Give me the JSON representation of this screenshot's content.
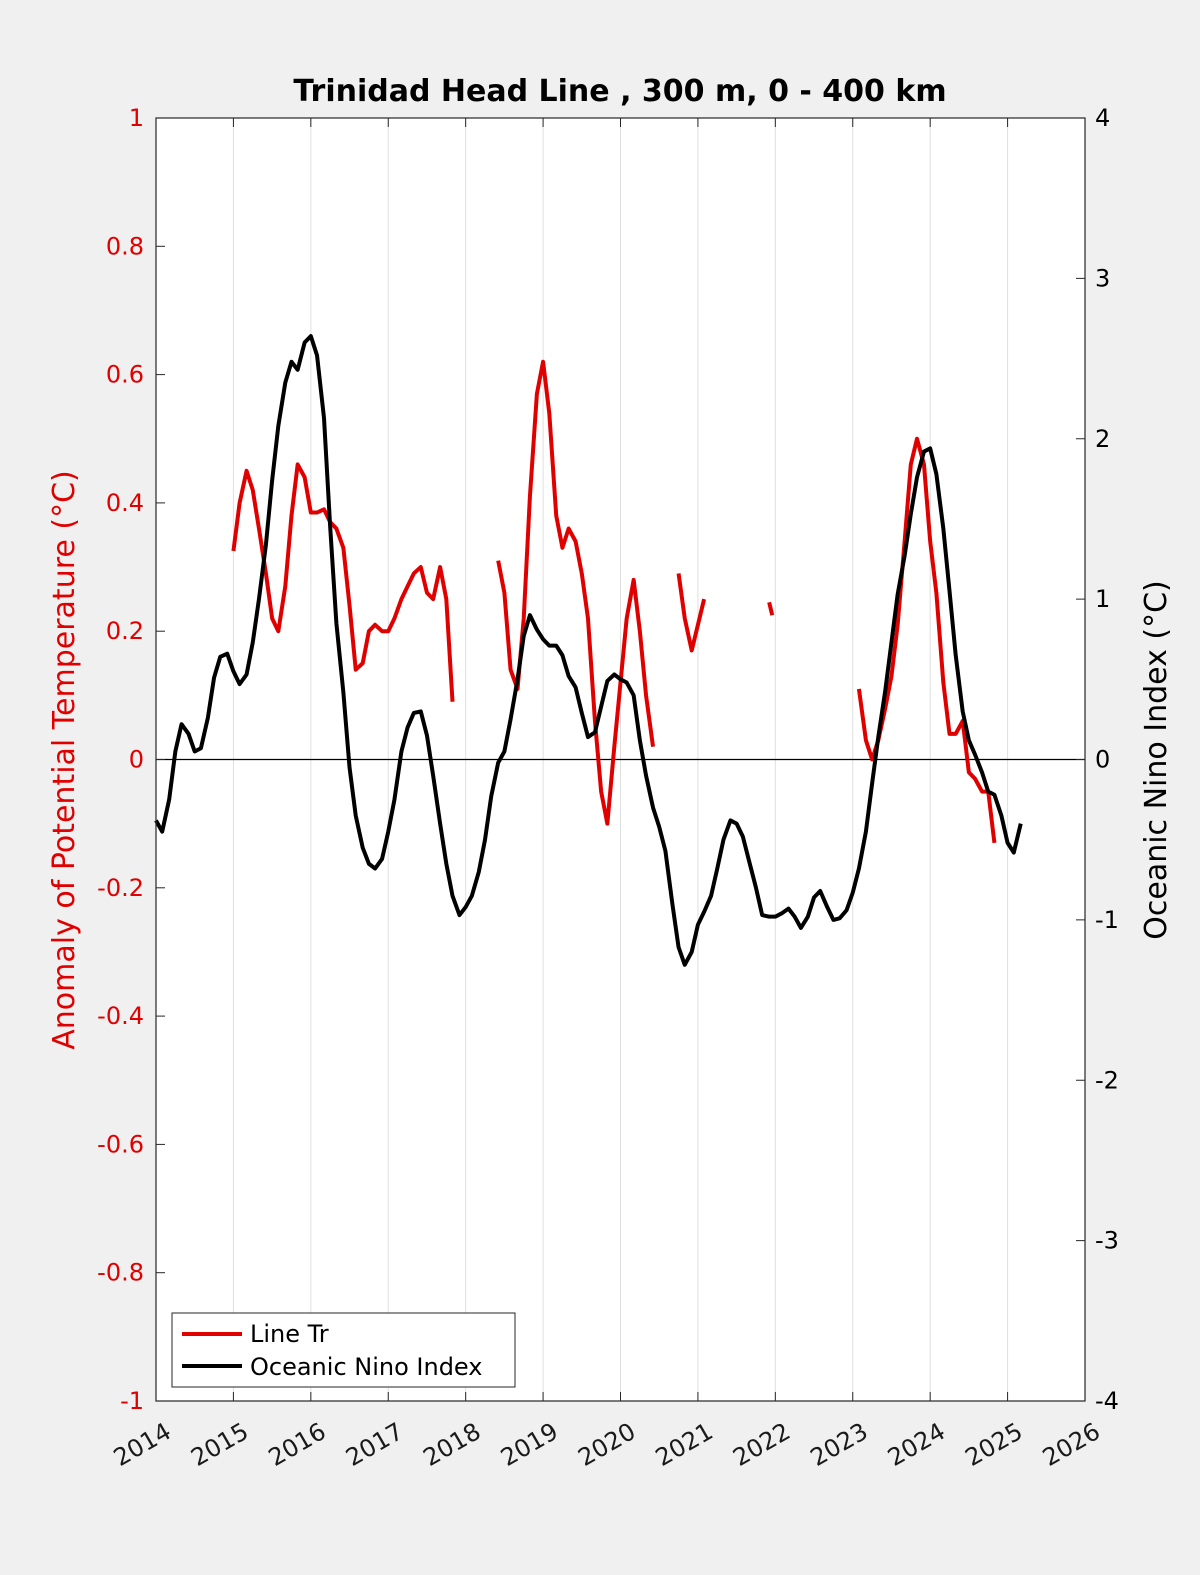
{
  "chart_data": {
    "type": "line",
    "title": "Trinidad Head Line , 300 m, 0 - 400 km",
    "ylabel_left": "Anomaly of Potential Temperature (°C)",
    "ylabel_right": "Oceanic Nino Index (°C)",
    "xlim": [
      2014,
      2026
    ],
    "ylim_left": [
      -1,
      1
    ],
    "ylim_right": [
      -4,
      4
    ],
    "x_ticks": [
      2014,
      2015,
      2016,
      2017,
      2018,
      2019,
      2020,
      2021,
      2022,
      2023,
      2024,
      2025,
      2026
    ],
    "y_ticks_left": [
      "1",
      "0.8",
      "0.6",
      "0.4",
      "0.2",
      "0",
      "-0.2",
      "-0.4",
      "-0.6",
      "-0.8",
      "-1"
    ],
    "y_ticks_right": [
      "4",
      "3",
      "2",
      "1",
      "0",
      "-1",
      "-2",
      "-3",
      "-4"
    ],
    "grid": "vertical",
    "legend_position": "bottom-left",
    "colors": {
      "line_tr": "#e00000",
      "oni": "#000000",
      "left_axis": "#e00000"
    },
    "series": [
      {
        "name": "Line Tr",
        "axis": "left",
        "segments": [
          [
            [
              2015.0,
              0.325
            ],
            [
              2015.08,
              0.4
            ],
            [
              2015.17,
              0.45
            ],
            [
              2015.25,
              0.42
            ],
            [
              2015.33,
              0.36
            ],
            [
              2015.42,
              0.29
            ],
            [
              2015.5,
              0.22
            ],
            [
              2015.58,
              0.2
            ],
            [
              2015.67,
              0.27
            ],
            [
              2015.75,
              0.38
            ],
            [
              2015.83,
              0.46
            ],
            [
              2015.92,
              0.44
            ],
            [
              2016.0,
              0.385
            ],
            [
              2016.08,
              0.385
            ],
            [
              2016.17,
              0.39
            ],
            [
              2016.25,
              0.37
            ],
            [
              2016.33,
              0.36
            ],
            [
              2016.42,
              0.33
            ],
            [
              2016.5,
              0.24
            ],
            [
              2016.58,
              0.14
            ],
            [
              2016.67,
              0.15
            ],
            [
              2016.75,
              0.2
            ],
            [
              2016.83,
              0.21
            ],
            [
              2016.92,
              0.2
            ],
            [
              2017.0,
              0.2
            ],
            [
              2017.08,
              0.22
            ],
            [
              2017.17,
              0.25
            ],
            [
              2017.25,
              0.27
            ],
            [
              2017.33,
              0.29
            ],
            [
              2017.42,
              0.3
            ],
            [
              2017.5,
              0.26
            ],
            [
              2017.58,
              0.25
            ],
            [
              2017.67,
              0.3
            ],
            [
              2017.75,
              0.25
            ],
            [
              2017.83,
              0.09
            ]
          ],
          [
            [
              2018.42,
              0.31
            ],
            [
              2018.5,
              0.26
            ],
            [
              2018.58,
              0.14
            ],
            [
              2018.67,
              0.11
            ],
            [
              2018.75,
              0.22
            ],
            [
              2018.83,
              0.41
            ],
            [
              2018.92,
              0.57
            ],
            [
              2019.0,
              0.62
            ],
            [
              2019.08,
              0.54
            ],
            [
              2019.17,
              0.38
            ],
            [
              2019.25,
              0.33
            ],
            [
              2019.33,
              0.36
            ],
            [
              2019.42,
              0.34
            ],
            [
              2019.5,
              0.29
            ],
            [
              2019.58,
              0.22
            ],
            [
              2019.67,
              0.06
            ],
            [
              2019.75,
              -0.05
            ],
            [
              2019.83,
              -0.1
            ],
            [
              2019.92,
              0.02
            ],
            [
              2020.0,
              0.12
            ],
            [
              2020.08,
              0.22
            ],
            [
              2020.17,
              0.28
            ],
            [
              2020.25,
              0.2
            ],
            [
              2020.33,
              0.1
            ],
            [
              2020.42,
              0.02
            ]
          ],
          [
            [
              2020.75,
              0.29
            ],
            [
              2020.83,
              0.22
            ],
            [
              2020.92,
              0.17
            ],
            [
              2021.0,
              0.21
            ],
            [
              2021.08,
              0.25
            ]
          ],
          [
            [
              2021.92,
              0.245
            ],
            [
              2021.96,
              0.225
            ]
          ],
          [
            [
              2023.08,
              0.11
            ],
            [
              2023.17,
              0.03
            ],
            [
              2023.25,
              0.0
            ],
            [
              2023.33,
              0.03
            ],
            [
              2023.42,
              0.08
            ],
            [
              2023.5,
              0.13
            ],
            [
              2023.58,
              0.21
            ],
            [
              2023.67,
              0.34
            ],
            [
              2023.75,
              0.46
            ],
            [
              2023.83,
              0.5
            ],
            [
              2023.92,
              0.46
            ],
            [
              2024.0,
              0.34
            ],
            [
              2024.08,
              0.26
            ],
            [
              2024.17,
              0.12
            ],
            [
              2024.25,
              0.04
            ],
            [
              2024.33,
              0.04
            ],
            [
              2024.42,
              0.06
            ],
            [
              2024.5,
              -0.02
            ],
            [
              2024.58,
              -0.03
            ],
            [
              2024.67,
              -0.05
            ],
            [
              2024.75,
              -0.05
            ],
            [
              2024.83,
              -0.13
            ]
          ]
        ]
      },
      {
        "name": "Oceanic Nino Index",
        "axis": "right",
        "segments": [
          [
            [
              2014.0,
              -0.38
            ],
            [
              2014.08,
              -0.45
            ],
            [
              2014.17,
              -0.25
            ],
            [
              2014.25,
              0.05
            ],
            [
              2014.33,
              0.22
            ],
            [
              2014.42,
              0.16
            ],
            [
              2014.5,
              0.05
            ],
            [
              2014.58,
              0.07
            ],
            [
              2014.67,
              0.26
            ],
            [
              2014.75,
              0.51
            ],
            [
              2014.83,
              0.64
            ],
            [
              2014.92,
              0.66
            ],
            [
              2015.0,
              0.55
            ],
            [
              2015.08,
              0.47
            ],
            [
              2015.17,
              0.53
            ],
            [
              2015.25,
              0.73
            ],
            [
              2015.33,
              1.0
            ],
            [
              2015.42,
              1.34
            ],
            [
              2015.5,
              1.74
            ],
            [
              2015.58,
              2.08
            ],
            [
              2015.67,
              2.35
            ],
            [
              2015.75,
              2.48
            ],
            [
              2015.83,
              2.43
            ],
            [
              2015.92,
              2.6
            ],
            [
              2016.0,
              2.64
            ],
            [
              2016.08,
              2.52
            ],
            [
              2016.17,
              2.13
            ],
            [
              2016.25,
              1.45
            ],
            [
              2016.33,
              0.85
            ],
            [
              2016.42,
              0.42
            ],
            [
              2016.5,
              -0.05
            ],
            [
              2016.58,
              -0.35
            ],
            [
              2016.67,
              -0.55
            ],
            [
              2016.75,
              -0.65
            ],
            [
              2016.83,
              -0.68
            ],
            [
              2016.92,
              -0.62
            ],
            [
              2017.0,
              -0.45
            ],
            [
              2017.08,
              -0.25
            ],
            [
              2017.17,
              0.05
            ],
            [
              2017.25,
              0.2
            ],
            [
              2017.33,
              0.29
            ],
            [
              2017.42,
              0.3
            ],
            [
              2017.5,
              0.15
            ],
            [
              2017.58,
              -0.1
            ],
            [
              2017.67,
              -0.4
            ],
            [
              2017.75,
              -0.65
            ],
            [
              2017.83,
              -0.85
            ],
            [
              2017.92,
              -0.97
            ],
            [
              2018.0,
              -0.92
            ],
            [
              2018.08,
              -0.85
            ],
            [
              2018.17,
              -0.7
            ],
            [
              2018.25,
              -0.5
            ],
            [
              2018.33,
              -0.23
            ],
            [
              2018.42,
              -0.02
            ],
            [
              2018.5,
              0.05
            ],
            [
              2018.58,
              0.25
            ],
            [
              2018.67,
              0.5
            ],
            [
              2018.75,
              0.77
            ],
            [
              2018.83,
              0.9
            ],
            [
              2018.92,
              0.81
            ],
            [
              2019.0,
              0.75
            ],
            [
              2019.08,
              0.71
            ],
            [
              2019.17,
              0.71
            ],
            [
              2019.25,
              0.65
            ],
            [
              2019.33,
              0.52
            ],
            [
              2019.42,
              0.45
            ],
            [
              2019.5,
              0.29
            ],
            [
              2019.58,
              0.14
            ],
            [
              2019.67,
              0.17
            ],
            [
              2019.75,
              0.33
            ],
            [
              2019.83,
              0.49
            ],
            [
              2019.92,
              0.53
            ],
            [
              2020.0,
              0.5
            ],
            [
              2020.08,
              0.48
            ],
            [
              2020.17,
              0.4
            ],
            [
              2020.25,
              0.12
            ],
            [
              2020.33,
              -0.1
            ],
            [
              2020.42,
              -0.3
            ],
            [
              2020.5,
              -0.42
            ],
            [
              2020.58,
              -0.57
            ],
            [
              2020.67,
              -0.9
            ],
            [
              2020.75,
              -1.17
            ],
            [
              2020.83,
              -1.28
            ],
            [
              2020.92,
              -1.2
            ],
            [
              2021.0,
              -1.03
            ],
            [
              2021.08,
              -0.95
            ],
            [
              2021.17,
              -0.85
            ],
            [
              2021.25,
              -0.68
            ],
            [
              2021.33,
              -0.5
            ],
            [
              2021.42,
              -0.38
            ],
            [
              2021.5,
              -0.4
            ],
            [
              2021.58,
              -0.48
            ],
            [
              2021.67,
              -0.65
            ],
            [
              2021.75,
              -0.8
            ],
            [
              2021.83,
              -0.97
            ],
            [
              2021.92,
              -0.98
            ],
            [
              2022.0,
              -0.98
            ],
            [
              2022.08,
              -0.96
            ],
            [
              2022.17,
              -0.93
            ],
            [
              2022.25,
              -0.98
            ],
            [
              2022.33,
              -1.05
            ],
            [
              2022.42,
              -0.98
            ],
            [
              2022.5,
              -0.86
            ],
            [
              2022.58,
              -0.82
            ],
            [
              2022.67,
              -0.92
            ],
            [
              2022.75,
              -1.0
            ],
            [
              2022.83,
              -0.99
            ],
            [
              2022.92,
              -0.94
            ],
            [
              2023.0,
              -0.83
            ],
            [
              2023.08,
              -0.68
            ],
            [
              2023.17,
              -0.45
            ],
            [
              2023.25,
              -0.15
            ],
            [
              2023.33,
              0.14
            ],
            [
              2023.42,
              0.43
            ],
            [
              2023.5,
              0.73
            ],
            [
              2023.58,
              1.03
            ],
            [
              2023.67,
              1.27
            ],
            [
              2023.75,
              1.53
            ],
            [
              2023.83,
              1.76
            ],
            [
              2023.92,
              1.92
            ],
            [
              2024.0,
              1.94
            ],
            [
              2024.08,
              1.78
            ],
            [
              2024.17,
              1.44
            ],
            [
              2024.25,
              1.05
            ],
            [
              2024.33,
              0.65
            ],
            [
              2024.42,
              0.3
            ],
            [
              2024.5,
              0.12
            ],
            [
              2024.58,
              0.03
            ],
            [
              2024.67,
              -0.08
            ],
            [
              2024.75,
              -0.2
            ],
            [
              2024.83,
              -0.22
            ],
            [
              2024.92,
              -0.35
            ],
            [
              2025.0,
              -0.52
            ],
            [
              2025.08,
              -0.58
            ],
            [
              2025.17,
              -0.4
            ]
          ]
        ]
      }
    ]
  }
}
